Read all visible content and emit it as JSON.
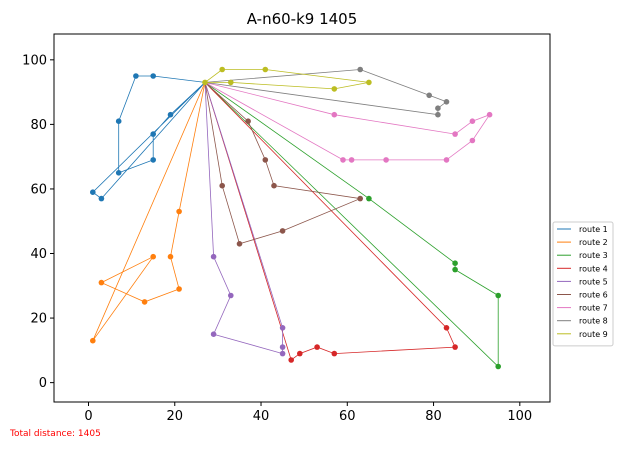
{
  "chart_data": {
    "type": "line",
    "title": "A-n60-k9 1405",
    "xlabel": "",
    "ylabel": "",
    "xlim": [
      -8,
      107
    ],
    "ylim": [
      -6,
      108
    ],
    "xticks": [
      0,
      20,
      40,
      60,
      80,
      100
    ],
    "yticks": [
      0,
      20,
      40,
      60,
      80,
      100
    ],
    "grid": false,
    "legend_position": "right",
    "depot": [
      27,
      93
    ],
    "series": [
      {
        "name": "route 1",
        "color": "#1f77b4",
        "points": [
          [
            27,
            93
          ],
          [
            19,
            83
          ],
          [
            15,
            77
          ],
          [
            15,
            69
          ],
          [
            7,
            65
          ],
          [
            7,
            81
          ],
          [
            11,
            95
          ],
          [
            15,
            95
          ],
          [
            27,
            93
          ],
          [
            3,
            57
          ],
          [
            1,
            59
          ],
          [
            27,
            93
          ]
        ]
      },
      {
        "name": "route 2",
        "color": "#ff7f0e",
        "points": [
          [
            27,
            93
          ],
          [
            21,
            53
          ],
          [
            19,
            39
          ],
          [
            21,
            29
          ],
          [
            13,
            25
          ],
          [
            3,
            31
          ],
          [
            15,
            39
          ],
          [
            1,
            13
          ],
          [
            27,
            93
          ]
        ]
      },
      {
        "name": "route 3",
        "color": "#2ca02c",
        "points": [
          [
            27,
            93
          ],
          [
            65,
            57
          ],
          [
            85,
            37
          ],
          [
            85,
            35
          ],
          [
            95,
            27
          ],
          [
            95,
            5
          ],
          [
            27,
            93
          ]
        ]
      },
      {
        "name": "route 4",
        "color": "#d62728",
        "points": [
          [
            27,
            93
          ],
          [
            83,
            17
          ],
          [
            85,
            11
          ],
          [
            57,
            9
          ],
          [
            53,
            11
          ],
          [
            49,
            9
          ],
          [
            47,
            7
          ],
          [
            27,
            93
          ]
        ]
      },
      {
        "name": "route 5",
        "color": "#9467bd",
        "points": [
          [
            27,
            93
          ],
          [
            29,
            39
          ],
          [
            33,
            27
          ],
          [
            29,
            15
          ],
          [
            45,
            9
          ],
          [
            45,
            11
          ],
          [
            45,
            17
          ],
          [
            27,
            93
          ]
        ]
      },
      {
        "name": "route 6",
        "color": "#8c564b",
        "points": [
          [
            27,
            93
          ],
          [
            37,
            81
          ],
          [
            41,
            69
          ],
          [
            43,
            61
          ],
          [
            63,
            57
          ],
          [
            45,
            47
          ],
          [
            35,
            43
          ],
          [
            31,
            61
          ],
          [
            27,
            93
          ]
        ]
      },
      {
        "name": "route 7",
        "color": "#e377c2",
        "points": [
          [
            27,
            93
          ],
          [
            57,
            83
          ],
          [
            85,
            77
          ],
          [
            89,
            81
          ],
          [
            93,
            83
          ],
          [
            89,
            75
          ],
          [
            83,
            69
          ],
          [
            69,
            69
          ],
          [
            61,
            69
          ],
          [
            59,
            69
          ],
          [
            27,
            93
          ]
        ]
      },
      {
        "name": "route 8",
        "color": "#7f7f7f",
        "points": [
          [
            27,
            93
          ],
          [
            63,
            97
          ],
          [
            79,
            89
          ],
          [
            83,
            87
          ],
          [
            81,
            85
          ],
          [
            81,
            83
          ],
          [
            27,
            93
          ]
        ]
      },
      {
        "name": "route 9",
        "color": "#bcbd22",
        "points": [
          [
            27,
            93
          ],
          [
            31,
            97
          ],
          [
            41,
            97
          ],
          [
            65,
            93
          ],
          [
            57,
            91
          ],
          [
            33,
            93
          ],
          [
            27,
            93
          ]
        ]
      }
    ],
    "annotation": "Total distance: 1405"
  }
}
